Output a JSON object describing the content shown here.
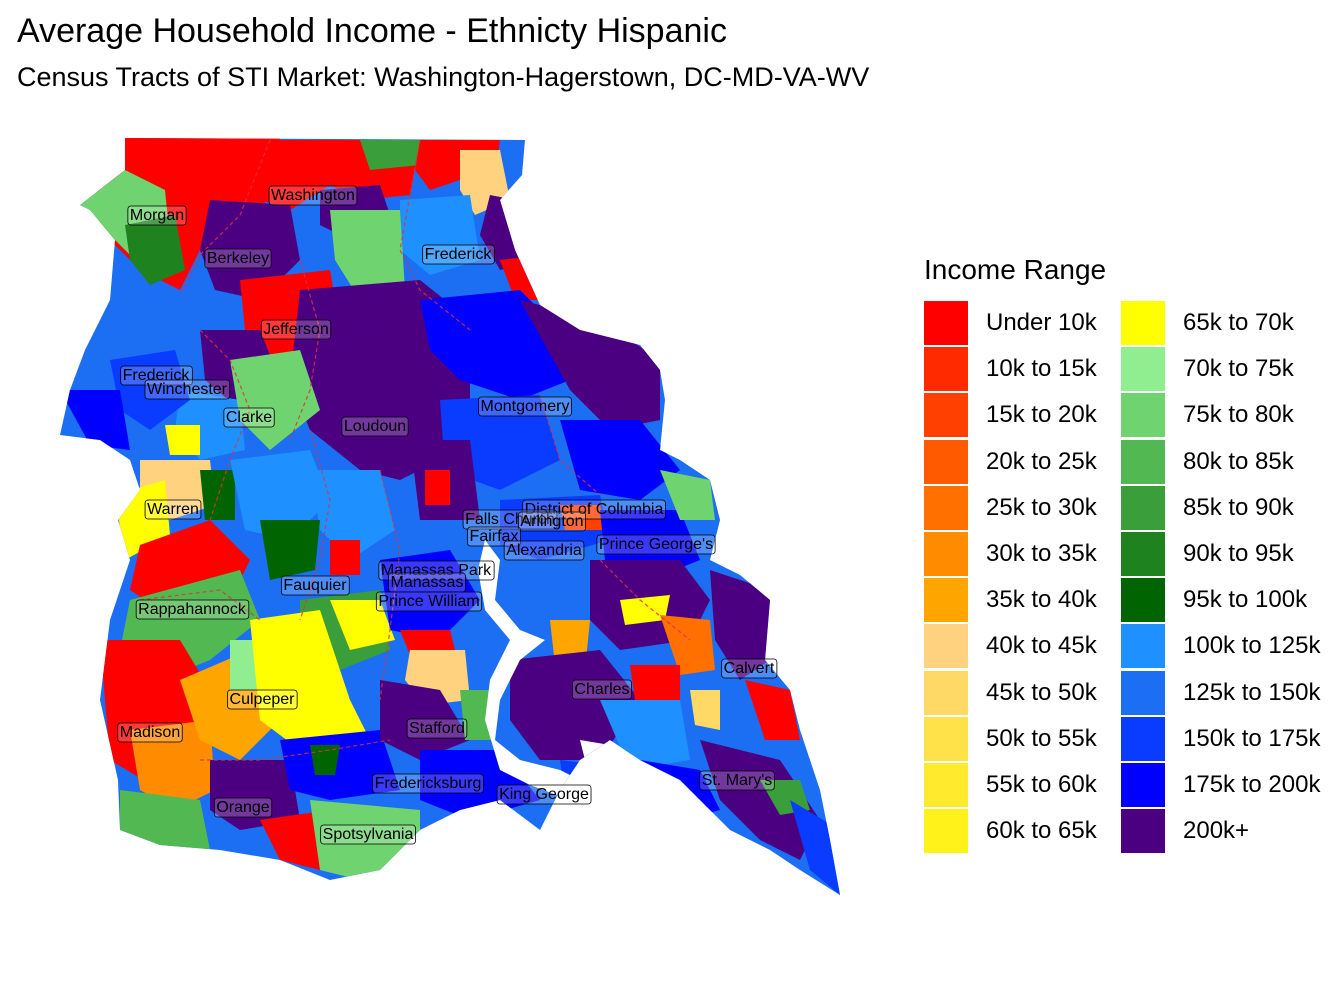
{
  "title": "Average Household Income - Ethnicty Hispanic",
  "subtitle": "Census Tracts of STI Market: Washington-Hagerstown, DC-MD-VA-WV",
  "legend": {
    "title": "Income Range",
    "items": [
      {
        "label": "Under 10k",
        "color": "#FF0000"
      },
      {
        "label": "10k to 15k",
        "color": "#FF2A00"
      },
      {
        "label": "15k to 20k",
        "color": "#FF4000"
      },
      {
        "label": "20k to 25k",
        "color": "#FF5A00"
      },
      {
        "label": "25k to 30k",
        "color": "#FF7000"
      },
      {
        "label": "30k to 35k",
        "color": "#FF8C00"
      },
      {
        "label": "35k to 40k",
        "color": "#FFA500"
      },
      {
        "label": "40k to 45k",
        "color": "#FFD27F"
      },
      {
        "label": "45k to 50k",
        "color": "#FFD966"
      },
      {
        "label": "50k to 55k",
        "color": "#FFE24A"
      },
      {
        "label": "55k to 60k",
        "color": "#FFEA2E"
      },
      {
        "label": "60k to 65k",
        "color": "#FFF21A"
      },
      {
        "label": "65k to 70k",
        "color": "#FFFF00"
      },
      {
        "label": "70k to 75k",
        "color": "#90EE90"
      },
      {
        "label": "75k to 80k",
        "color": "#6FD36F"
      },
      {
        "label": "80k to 85k",
        "color": "#52B852"
      },
      {
        "label": "85k to 90k",
        "color": "#3A9E3A"
      },
      {
        "label": "90k to 95k",
        "color": "#1E821E"
      },
      {
        "label": "95k to 100k",
        "color": "#006400"
      },
      {
        "label": "100k to 125k",
        "color": "#1E90FF"
      },
      {
        "label": "125k to 150k",
        "color": "#1C6EF2"
      },
      {
        "label": "150k to 175k",
        "color": "#0A3CFF"
      },
      {
        "label": "175k to 200k",
        "color": "#0000FF"
      },
      {
        "label": "200k+",
        "color": "#4B0082"
      }
    ]
  },
  "counties": [
    "Washington",
    "Morgan",
    "Berkeley",
    "Frederick",
    "Jefferson",
    "Frederick",
    "Winchester",
    "Clarke",
    "Loudoun",
    "Montgomery",
    "Warren",
    "District of Columbia",
    "Falls Church",
    "Arlington",
    "Fairfax",
    "Alexandria",
    "Prince George's",
    "Manassas Park",
    "Manassas",
    "Fauquier",
    "Prince William",
    "Rappahannock",
    "Culpeper",
    "Madison",
    "Stafford",
    "Calvert",
    "Charles",
    "Fredericksburg",
    "King George",
    "St. Mary's",
    "Orange",
    "Spotsylvania"
  ]
}
